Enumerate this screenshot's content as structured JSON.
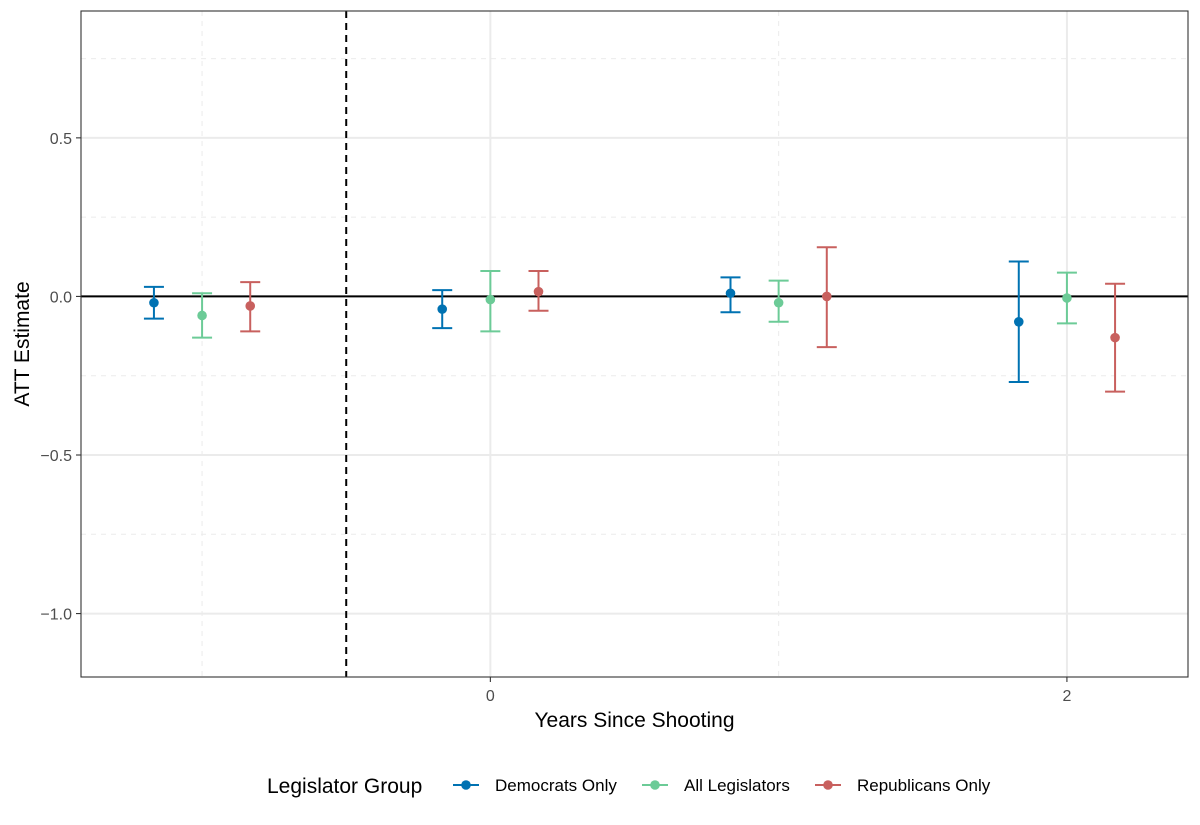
{
  "chart_data": {
    "type": "errorbar",
    "title": "",
    "xlabel": "Years Since Shooting",
    "ylabel": "ATT Estimate",
    "xlim": [
      -1.42,
      2.42
    ],
    "ylim": [
      -1.2,
      0.9
    ],
    "x_ticks": [
      {
        "value": 0,
        "label": "0"
      },
      {
        "value": 2,
        "label": "2"
      }
    ],
    "y_ticks": [
      {
        "value": 0.5,
        "label": "0.5"
      },
      {
        "value": 0.0,
        "label": "0.0"
      },
      {
        "value": -0.5,
        "label": "−0.5"
      },
      {
        "value": -1.0,
        "label": "−1.0"
      }
    ],
    "x_minor_grid": [
      -1,
      1
    ],
    "y_minor_grid": [
      0.75,
      0.25,
      -0.25,
      -0.75
    ],
    "reference_hline": 0,
    "reference_vline": -0.5,
    "dodge": 0.167,
    "legend": {
      "title": "Legislator Group",
      "position": "bottom"
    },
    "series": [
      {
        "name": "Democrats Only",
        "color": "#0072B2",
        "offset": -1,
        "points": [
          {
            "x": -1,
            "y": -0.02,
            "lo": -0.07,
            "hi": 0.03
          },
          {
            "x": 0,
            "y": -0.04,
            "lo": -0.1,
            "hi": 0.02
          },
          {
            "x": 1,
            "y": 0.01,
            "lo": -0.05,
            "hi": 0.06
          },
          {
            "x": 2,
            "y": -0.08,
            "lo": -0.27,
            "hi": 0.11
          }
        ]
      },
      {
        "name": "All Legislators",
        "color": "#6ccb97",
        "offset": 0,
        "points": [
          {
            "x": -1,
            "y": -0.06,
            "lo": -0.13,
            "hi": 0.01
          },
          {
            "x": 0,
            "y": -0.01,
            "lo": -0.11,
            "hi": 0.08
          },
          {
            "x": 1,
            "y": -0.02,
            "lo": -0.08,
            "hi": 0.05
          },
          {
            "x": 2,
            "y": -0.005,
            "lo": -0.085,
            "hi": 0.075
          }
        ]
      },
      {
        "name": "Republicans Only",
        "color": "#c8605e",
        "offset": 1,
        "points": [
          {
            "x": -1,
            "y": -0.03,
            "lo": -0.11,
            "hi": 0.045
          },
          {
            "x": 0,
            "y": 0.015,
            "lo": -0.045,
            "hi": 0.08
          },
          {
            "x": 1,
            "y": 0.0,
            "lo": -0.16,
            "hi": 0.155
          },
          {
            "x": 2,
            "y": -0.13,
            "lo": -0.3,
            "hi": 0.04
          }
        ]
      }
    ]
  }
}
